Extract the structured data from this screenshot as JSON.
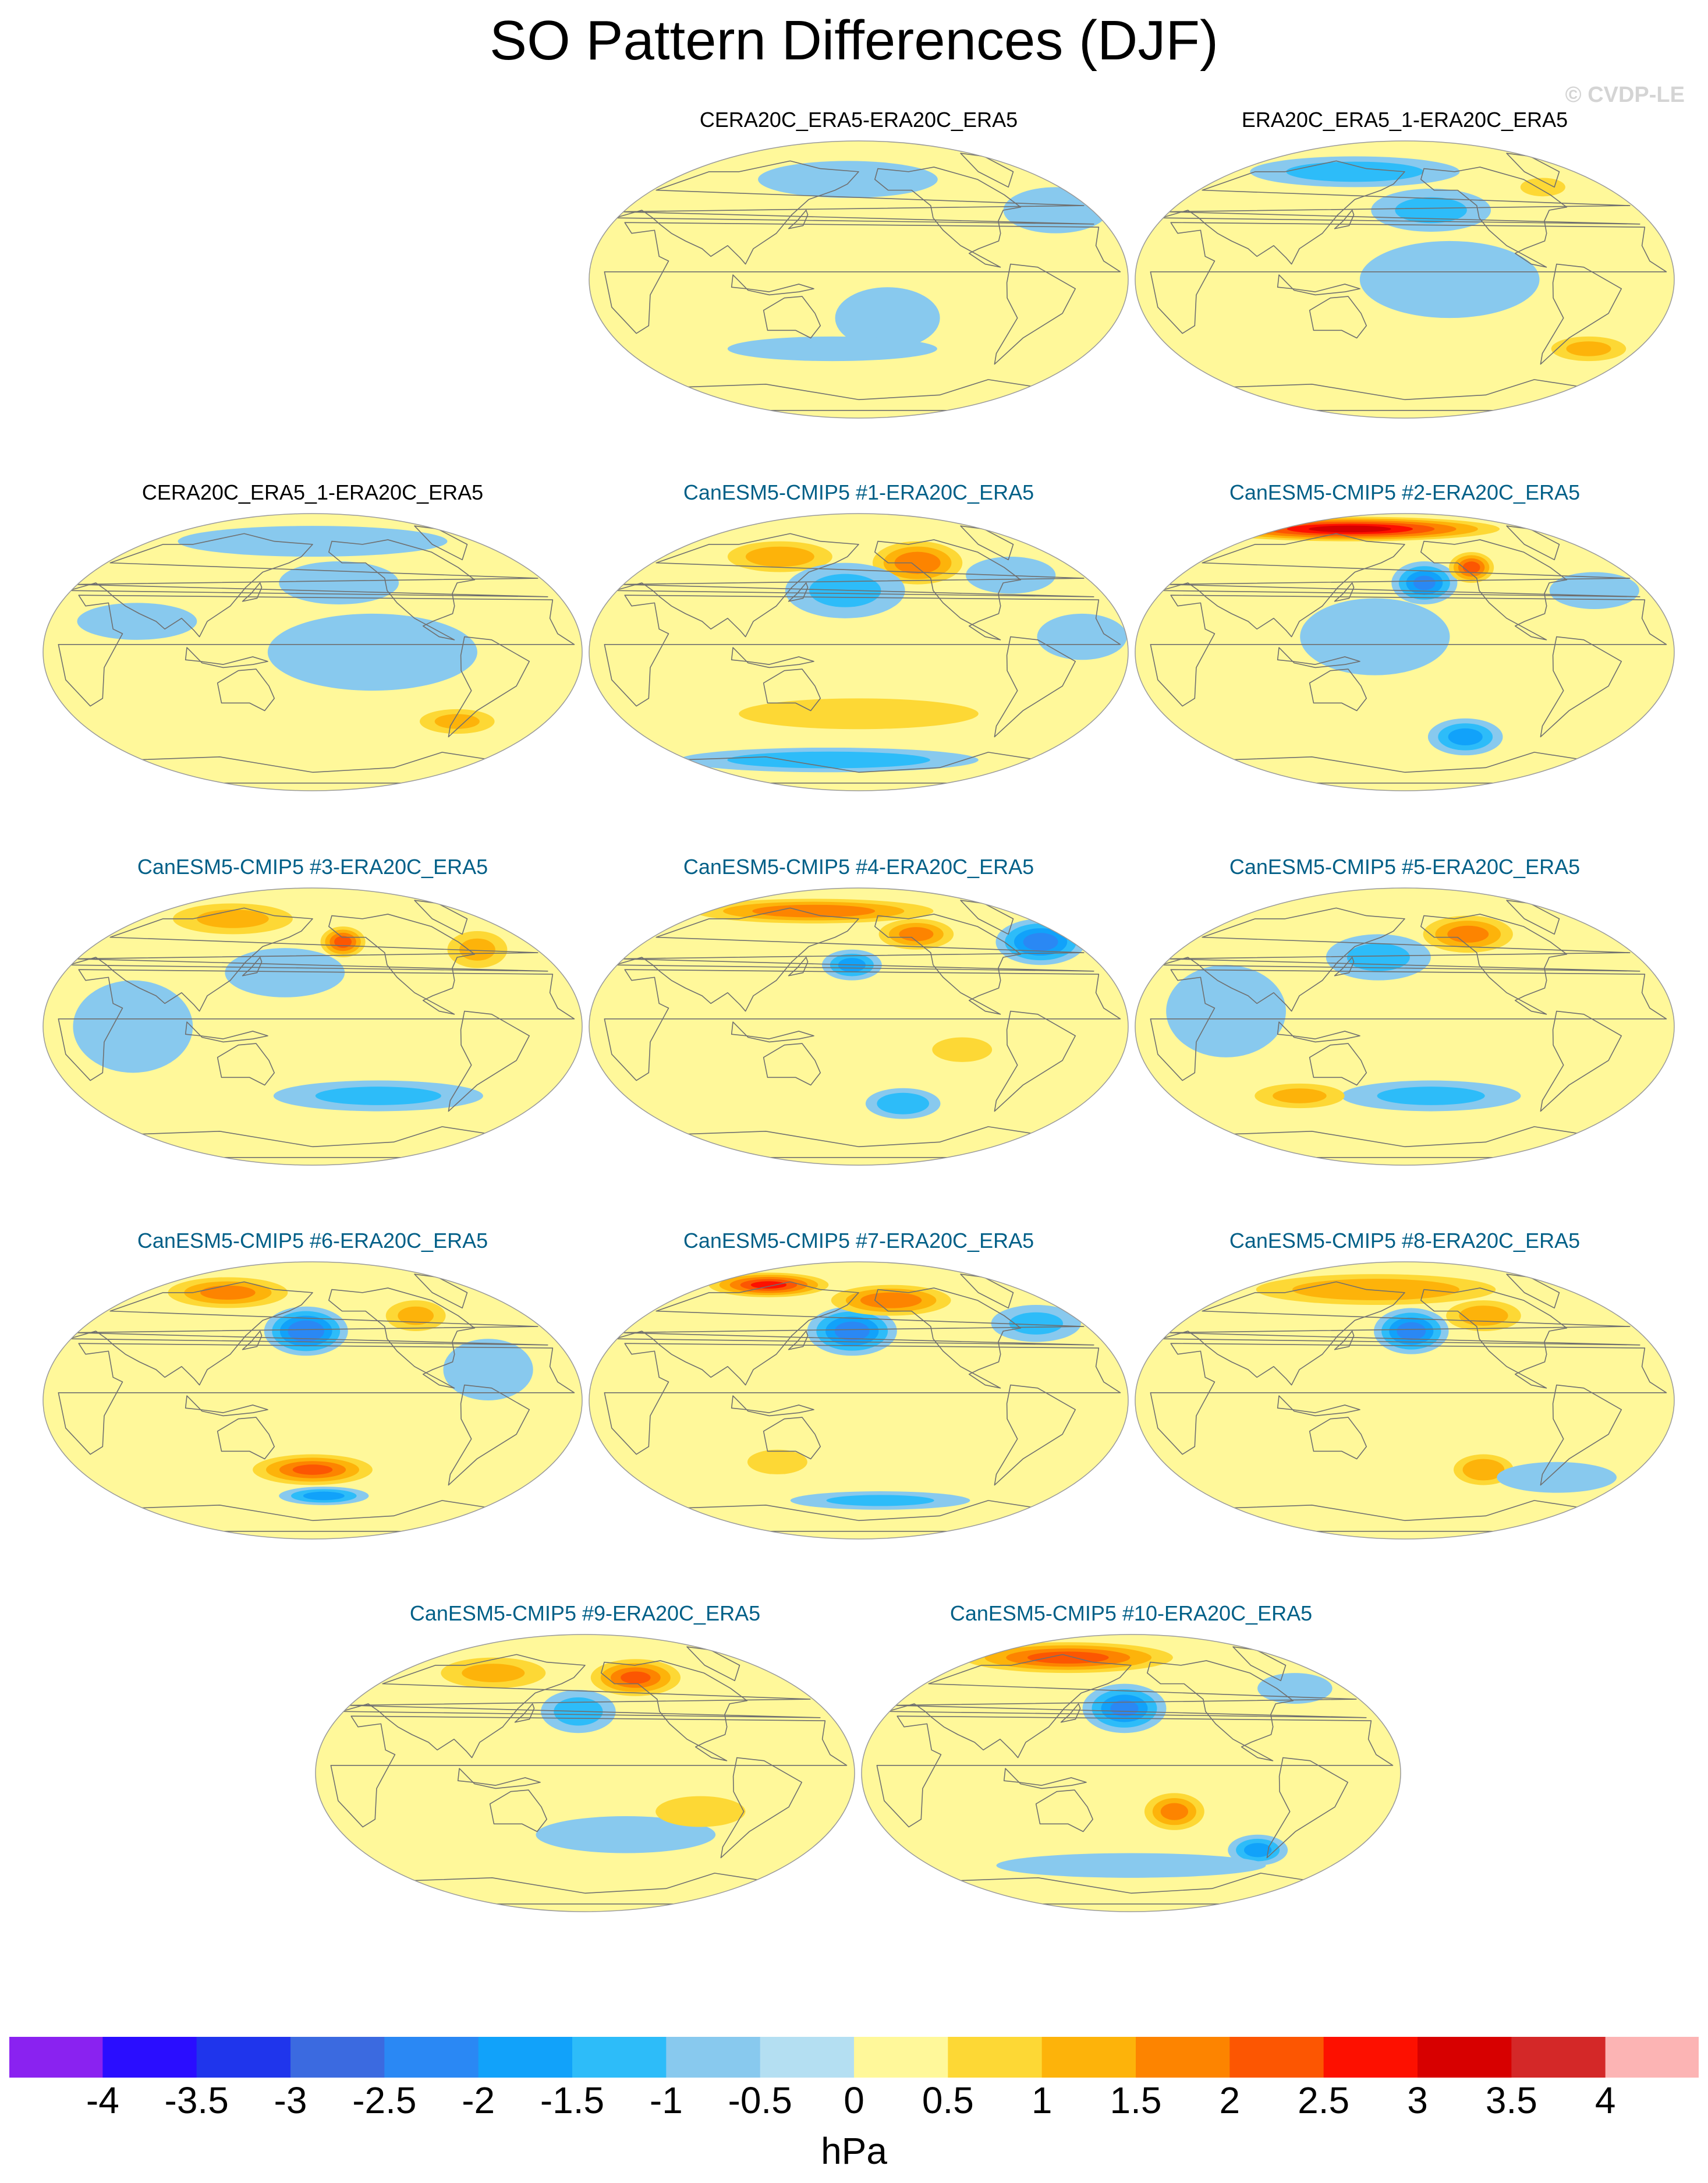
{
  "title": "SO Pattern Differences (DJF)",
  "copyright": "© CVDP-LE",
  "chart_data": {
    "type": "heatmap",
    "title": "SO Pattern Differences (DJF)",
    "units": "hPa",
    "projection": "Robinson (Pacific-centred global map)",
    "colorbar": {
      "levels": [
        "-4",
        "-3.5",
        "-3",
        "-2.5",
        "-2",
        "-1.5",
        "-1",
        "-0.5",
        "0",
        "0.5",
        "1",
        "1.5",
        "2",
        "2.5",
        "3",
        "3.5",
        "4"
      ],
      "colors": [
        "#8a22f0",
        "#2a0dff",
        "#1f35ec",
        "#3b6ae0",
        "#2a88f4",
        "#11a2fa",
        "#2dbcf9",
        "#88c9ee",
        "#b4dff2",
        "#fff89a",
        "#fdd835",
        "#fdb30a",
        "#fd8400",
        "#fc5602",
        "#fd1000",
        "#d70000",
        "#d42828",
        "#fcb4b4"
      ]
    },
    "panels": [
      {
        "id": "p1",
        "title": "CERA20C_ERA5-ERA20C_ERA5",
        "kind": "obs",
        "features": [
          {
            "lon": 170,
            "lat": 65,
            "rx": 60,
            "ry": 12,
            "v": -0.6
          },
          {
            "lon": 200,
            "lat": -25,
            "rx": 35,
            "ry": 20,
            "v": -0.5
          },
          {
            "lon": 160,
            "lat": -45,
            "rx": 70,
            "ry": 8,
            "v": -0.6
          },
          {
            "lon": 330,
            "lat": 45,
            "rx": 35,
            "ry": 15,
            "v": -0.5
          }
        ]
      },
      {
        "id": "p2",
        "title": "ERA20C_ERA5_1-ERA20C_ERA5",
        "kind": "obs",
        "features": [
          {
            "lon": 130,
            "lat": 70,
            "rx": 70,
            "ry": 10,
            "v": -1.2
          },
          {
            "lon": 200,
            "lat": 45,
            "rx": 40,
            "ry": 14,
            "v": -1.0
          },
          {
            "lon": 210,
            "lat": 0,
            "rx": 60,
            "ry": 25,
            "v": -0.6
          },
          {
            "lon": 320,
            "lat": -45,
            "rx": 25,
            "ry": 8,
            "v": 1.0
          },
          {
            "lon": 300,
            "lat": 60,
            "rx": 15,
            "ry": 6,
            "v": 0.8
          }
        ]
      },
      {
        "id": "p3",
        "title": "CERA20C_ERA5_1-ERA20C_ERA5",
        "kind": "obs",
        "features": [
          {
            "lon": 180,
            "lat": 72,
            "rx": 90,
            "ry": 10,
            "v": -0.7
          },
          {
            "lon": 200,
            "lat": 45,
            "rx": 40,
            "ry": 14,
            "v": -0.9
          },
          {
            "lon": 220,
            "lat": 0,
            "rx": 70,
            "ry": 25,
            "v": -0.6
          },
          {
            "lon": 290,
            "lat": -45,
            "rx": 25,
            "ry": 8,
            "v": 1.0
          },
          {
            "lon": 60,
            "lat": 20,
            "rx": 40,
            "ry": 12,
            "v": -0.6
          }
        ]
      },
      {
        "id": "p4",
        "title": "CanESM5-CMIP5 #1-ERA20C_ERA5",
        "kind": "model",
        "features": [
          {
            "lon": 230,
            "lat": 58,
            "rx": 30,
            "ry": 14,
            "v": 1.8
          },
          {
            "lon": 110,
            "lat": 62,
            "rx": 35,
            "ry": 10,
            "v": 1.2
          },
          {
            "lon": 170,
            "lat": 40,
            "rx": 40,
            "ry": 18,
            "v": -1.0
          },
          {
            "lon": 300,
            "lat": 50,
            "rx": 30,
            "ry": 12,
            "v": -0.8
          },
          {
            "lon": 180,
            "lat": -40,
            "rx": 80,
            "ry": 10,
            "v": 0.6
          },
          {
            "lon": 150,
            "lat": -70,
            "rx": 100,
            "ry": 8,
            "v": -1.3
          },
          {
            "lon": 330,
            "lat": 10,
            "rx": 30,
            "ry": 15,
            "v": -0.6
          }
        ]
      },
      {
        "id": "p5",
        "title": "CanESM5-CMIP5 #2-ERA20C_ERA5",
        "kind": "model",
        "features": [
          {
            "lon": 110,
            "lat": 80,
            "rx": 100,
            "ry": 8,
            "v": 3.2
          },
          {
            "lon": 195,
            "lat": 45,
            "rx": 22,
            "ry": 14,
            "v": -2.0
          },
          {
            "lon": 235,
            "lat": 55,
            "rx": 15,
            "ry": 10,
            "v": 2.2
          },
          {
            "lon": 230,
            "lat": -55,
            "rx": 25,
            "ry": 12,
            "v": -1.6
          },
          {
            "lon": 160,
            "lat": 10,
            "rx": 50,
            "ry": 25,
            "v": -0.6
          },
          {
            "lon": 320,
            "lat": 40,
            "rx": 30,
            "ry": 12,
            "v": -0.8
          }
        ]
      },
      {
        "id": "p6",
        "title": "CanESM5-CMIP5 #3-ERA20C_ERA5",
        "kind": "model",
        "features": [
          {
            "lon": 205,
            "lat": 55,
            "rx": 15,
            "ry": 10,
            "v": 2.2
          },
          {
            "lon": 100,
            "lat": 70,
            "rx": 40,
            "ry": 10,
            "v": 1.0
          },
          {
            "lon": 160,
            "lat": 35,
            "rx": 40,
            "ry": 16,
            "v": -0.8
          },
          {
            "lon": 230,
            "lat": -45,
            "rx": 70,
            "ry": 10,
            "v": -1.0
          },
          {
            "lon": 310,
            "lat": 50,
            "rx": 20,
            "ry": 12,
            "v": 1.0
          },
          {
            "lon": 60,
            "lat": 0,
            "rx": 40,
            "ry": 30,
            "v": -0.6
          }
        ]
      },
      {
        "id": "p7",
        "title": "CanESM5-CMIP5 #4-ERA20C_ERA5",
        "kind": "model",
        "features": [
          {
            "lon": 330,
            "lat": 55,
            "rx": 30,
            "ry": 15,
            "v": -2.2
          },
          {
            "lon": 130,
            "lat": 75,
            "rx": 80,
            "ry": 8,
            "v": 1.8
          },
          {
            "lon": 230,
            "lat": 60,
            "rx": 25,
            "ry": 10,
            "v": 1.6
          },
          {
            "lon": 175,
            "lat": 40,
            "rx": 20,
            "ry": 10,
            "v": -1.6
          },
          {
            "lon": 215,
            "lat": -50,
            "rx": 25,
            "ry": 10,
            "v": -1.4
          },
          {
            "lon": 250,
            "lat": -15,
            "rx": 20,
            "ry": 8,
            "v": 0.8
          }
        ]
      },
      {
        "id": "p8",
        "title": "CanESM5-CMIP5 #5-ERA20C_ERA5",
        "kind": "model",
        "features": [
          {
            "lon": 235,
            "lat": 60,
            "rx": 30,
            "ry": 12,
            "v": 1.6
          },
          {
            "lon": 160,
            "lat": 45,
            "rx": 35,
            "ry": 15,
            "v": -1.0
          },
          {
            "lon": 200,
            "lat": -45,
            "rx": 60,
            "ry": 10,
            "v": -1.0
          },
          {
            "lon": 100,
            "lat": -45,
            "rx": 30,
            "ry": 8,
            "v": 1.0
          },
          {
            "lon": 60,
            "lat": 10,
            "rx": 40,
            "ry": 30,
            "v": -0.6
          }
        ]
      },
      {
        "id": "p9",
        "title": "CanESM5-CMIP5 #6-ERA20C_ERA5",
        "kind": "model",
        "features": [
          {
            "lon": 175,
            "lat": 45,
            "rx": 28,
            "ry": 16,
            "v": -2.4
          },
          {
            "lon": 95,
            "lat": 70,
            "rx": 40,
            "ry": 10,
            "v": 1.6
          },
          {
            "lon": 265,
            "lat": 55,
            "rx": 20,
            "ry": 10,
            "v": 1.0
          },
          {
            "lon": 180,
            "lat": -45,
            "rx": 40,
            "ry": 10,
            "v": 2.0
          },
          {
            "lon": 190,
            "lat": -62,
            "rx": 30,
            "ry": 6,
            "v": -1.6
          },
          {
            "lon": 300,
            "lat": 20,
            "rx": 30,
            "ry": 20,
            "v": -0.6
          }
        ]
      },
      {
        "id": "p10",
        "title": "CanESM5-CMIP5 #7-ERA20C_ERA5",
        "kind": "model",
        "features": [
          {
            "lon": 175,
            "lat": 45,
            "rx": 30,
            "ry": 16,
            "v": -2.2
          },
          {
            "lon": 80,
            "lat": 75,
            "rx": 40,
            "ry": 8,
            "v": 2.6
          },
          {
            "lon": 210,
            "lat": 65,
            "rx": 40,
            "ry": 10,
            "v": 1.8
          },
          {
            "lon": 320,
            "lat": 50,
            "rx": 30,
            "ry": 12,
            "v": -1.0
          },
          {
            "lon": 120,
            "lat": -40,
            "rx": 20,
            "ry": 8,
            "v": 0.8
          },
          {
            "lon": 200,
            "lat": -65,
            "rx": 60,
            "ry": 6,
            "v": -1.0
          }
        ]
      },
      {
        "id": "p11",
        "title": "CanESM5-CMIP5 #8-ERA20C_ERA5",
        "kind": "model",
        "features": [
          {
            "lon": 185,
            "lat": 45,
            "rx": 25,
            "ry": 15,
            "v": -2.2
          },
          {
            "lon": 150,
            "lat": 72,
            "rx": 80,
            "ry": 10,
            "v": 1.4
          },
          {
            "lon": 245,
            "lat": 55,
            "rx": 25,
            "ry": 10,
            "v": 1.2
          },
          {
            "lon": 240,
            "lat": -45,
            "rx": 20,
            "ry": 10,
            "v": 1.4
          },
          {
            "lon": 300,
            "lat": -50,
            "rx": 40,
            "ry": 10,
            "v": -0.8
          }
        ]
      },
      {
        "id": "p12",
        "title": "CanESM5-CMIP5 #9-ERA20C_ERA5",
        "kind": "model",
        "features": [
          {
            "lon": 225,
            "lat": 62,
            "rx": 30,
            "ry": 12,
            "v": 2.0
          },
          {
            "lon": 175,
            "lat": 40,
            "rx": 25,
            "ry": 14,
            "v": -1.2
          },
          {
            "lon": 95,
            "lat": 65,
            "rx": 35,
            "ry": 10,
            "v": 1.0
          },
          {
            "lon": 210,
            "lat": -40,
            "rx": 60,
            "ry": 12,
            "v": -0.7
          },
          {
            "lon": 260,
            "lat": -25,
            "rx": 30,
            "ry": 10,
            "v": 0.8
          }
        ]
      },
      {
        "id": "p13",
        "title": "CanESM5-CMIP5 #10-ERA20C_ERA5",
        "kind": "model",
        "features": [
          {
            "lon": 175,
            "lat": 42,
            "rx": 28,
            "ry": 16,
            "v": -2.0
          },
          {
            "lon": 110,
            "lat": 75,
            "rx": 70,
            "ry": 10,
            "v": 2.2
          },
          {
            "lon": 210,
            "lat": -25,
            "rx": 20,
            "ry": 12,
            "v": 1.6
          },
          {
            "lon": 280,
            "lat": -50,
            "rx": 20,
            "ry": 10,
            "v": -1.6
          },
          {
            "lon": 180,
            "lat": -60,
            "rx": 90,
            "ry": 8,
            "v": -0.8
          },
          {
            "lon": 315,
            "lat": 55,
            "rx": 25,
            "ry": 10,
            "v": -0.9
          }
        ]
      }
    ]
  }
}
